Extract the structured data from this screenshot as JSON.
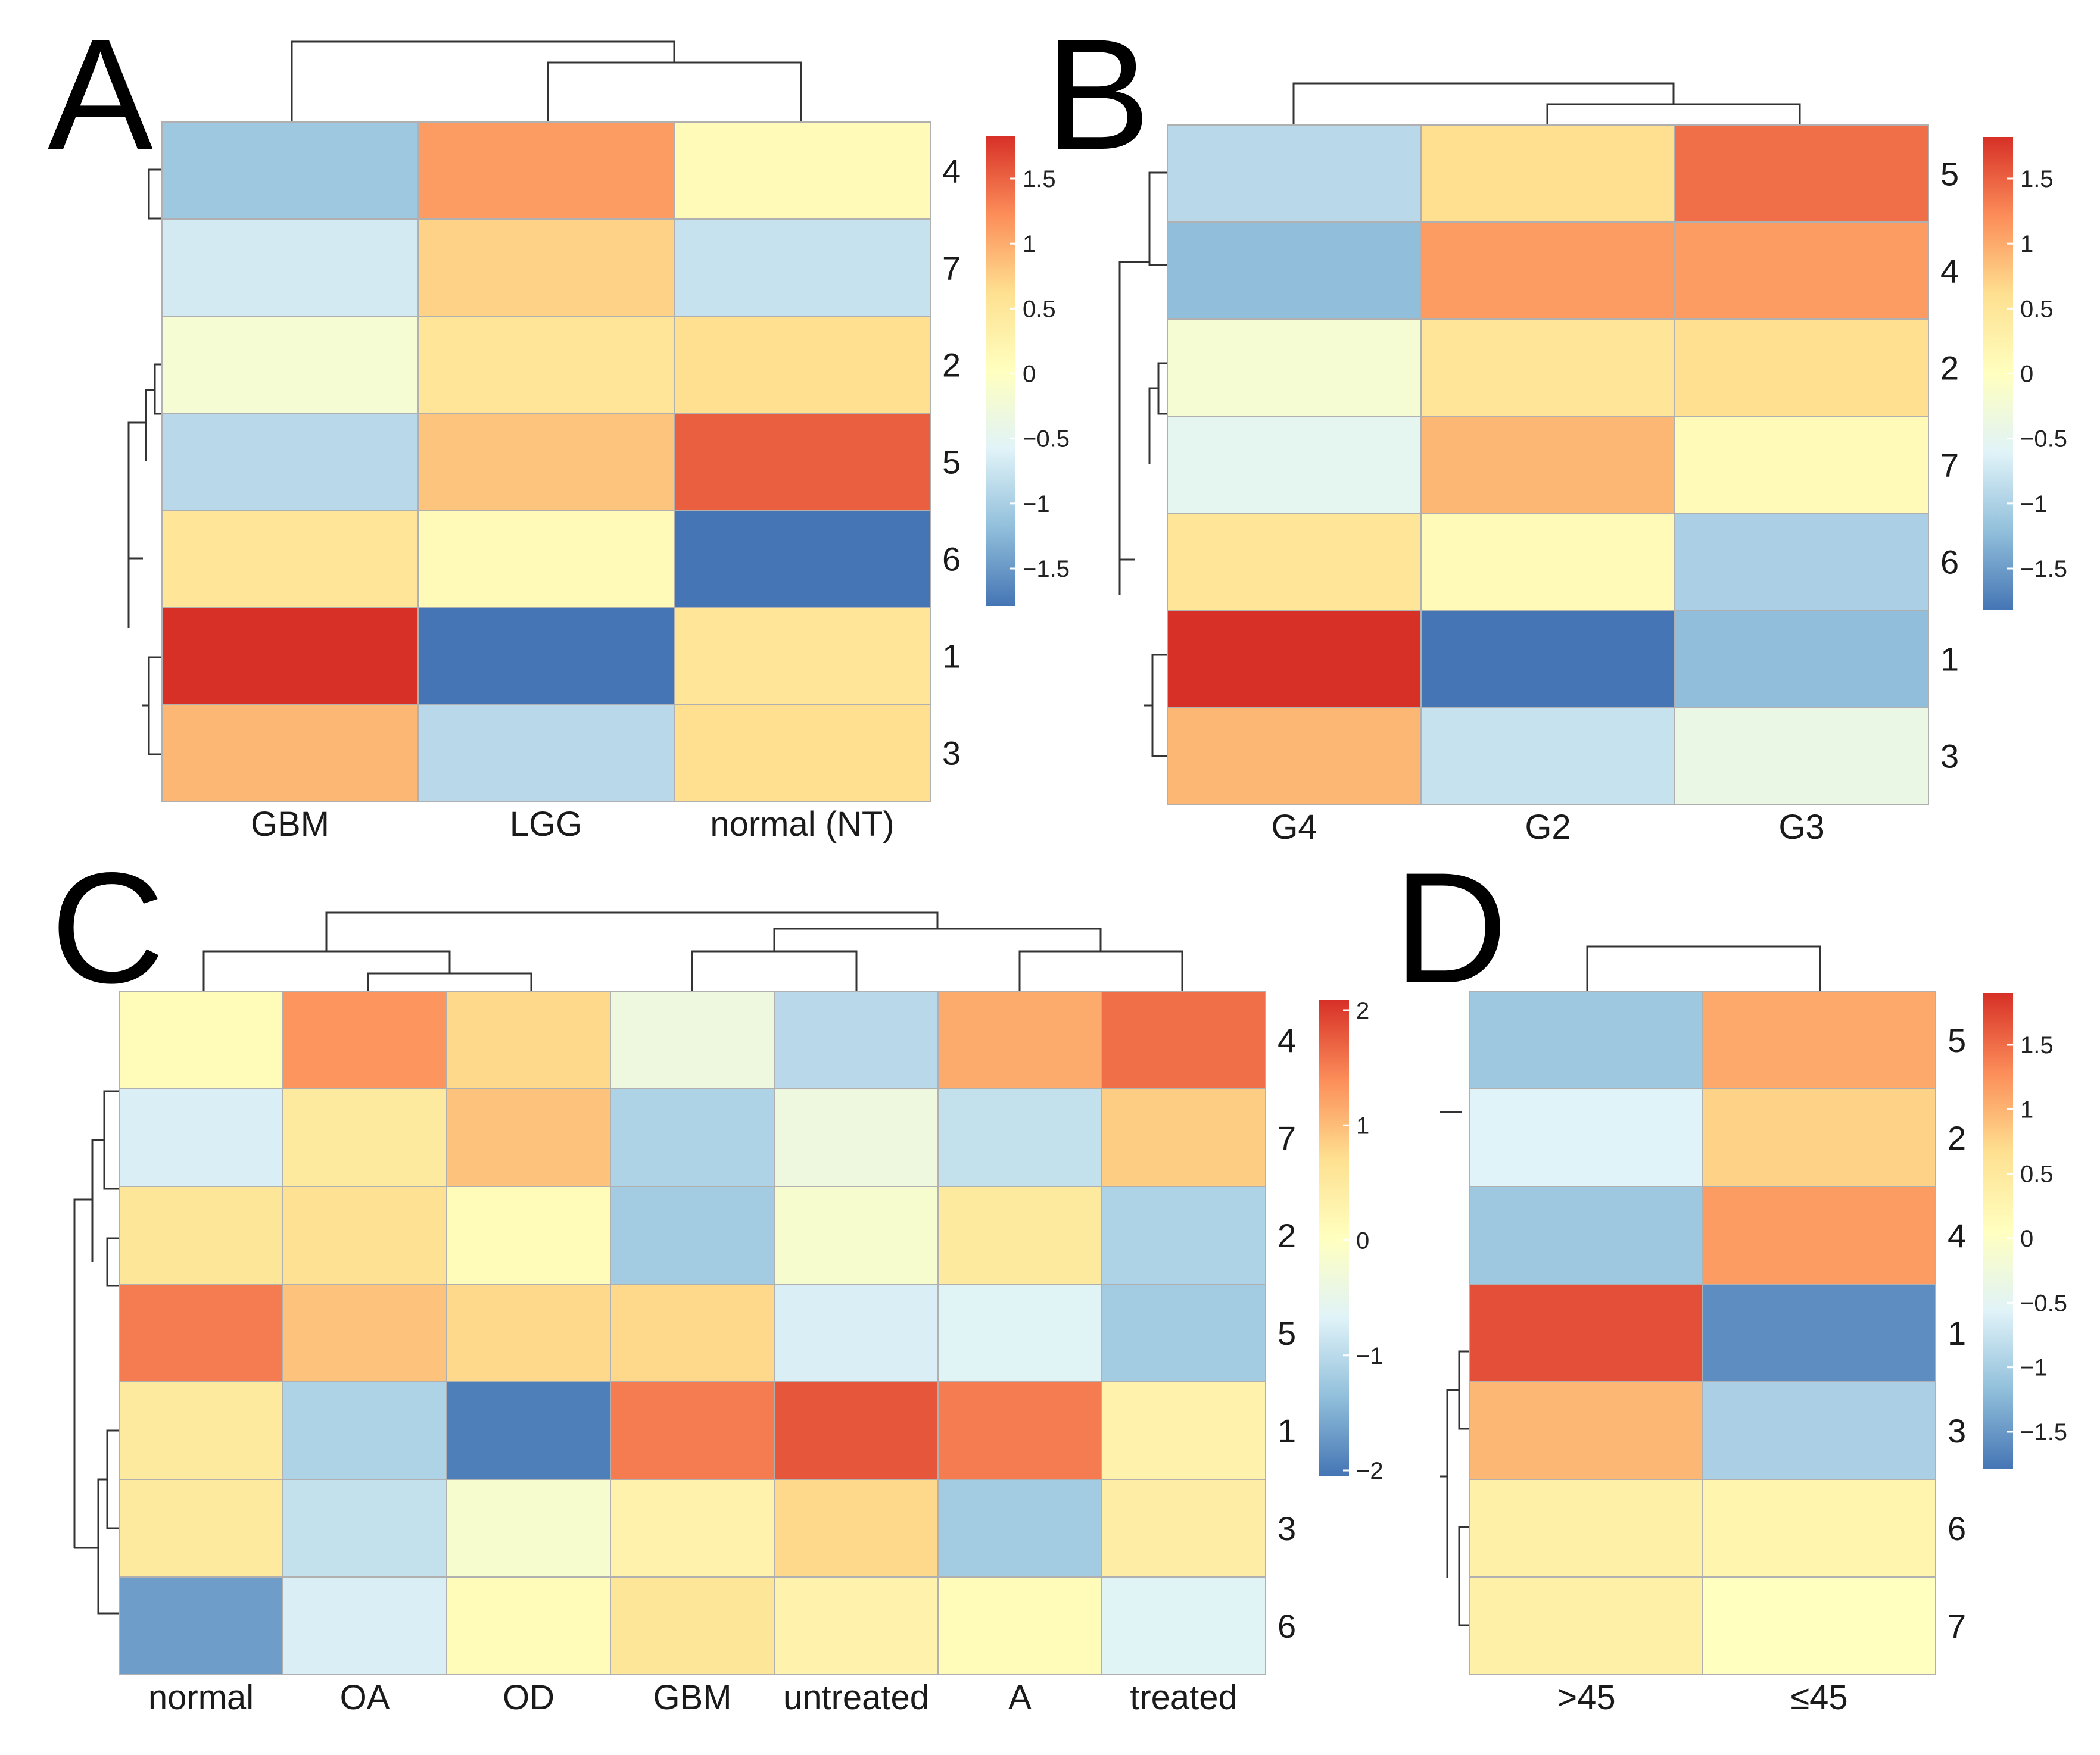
{
  "colormap": {
    "stops": [
      "#4575b4",
      "#91bfdb",
      "#e0f3f8",
      "#ffffbf",
      "#fee090",
      "#fc8d59",
      "#d73027"
    ],
    "legend_ticks_1_5": [
      "1.5",
      "1",
      "0.5",
      "0",
      "−0.5",
      "−1",
      "−1.5"
    ],
    "legend_ticks_2": [
      "2",
      "1",
      "0",
      "−1",
      "−2"
    ]
  },
  "chart_data": [
    {
      "panel": "A",
      "type": "heatmap",
      "letter": "A",
      "columns": [
        "GBM",
        "LGG",
        "normal (NT)"
      ],
      "rows": [
        "4",
        "7",
        "2",
        "5",
        "6",
        "1",
        "3"
      ],
      "values": [
        [
          -1.1,
          1.1,
          0.1
        ],
        [
          -0.7,
          0.7,
          -0.8
        ],
        [
          -0.2,
          0.5,
          0.6
        ],
        [
          -0.9,
          0.8,
          1.5
        ],
        [
          0.5,
          0.1,
          -1.8
        ],
        [
          1.8,
          -1.8,
          0.5
        ],
        [
          0.9,
          -0.9,
          0.6
        ]
      ],
      "range": [
        -1.8,
        1.8
      ],
      "legend_ticks": [
        "1.5",
        "1",
        "0.5",
        "0",
        "−0.5",
        "−1",
        "−1.5"
      ]
    },
    {
      "panel": "B",
      "type": "heatmap",
      "letter": "B",
      "columns": [
        "G4",
        "G2",
        "G3"
      ],
      "rows": [
        "5",
        "4",
        "2",
        "7",
        "6",
        "1",
        "3"
      ],
      "values": [
        [
          -0.9,
          0.6,
          1.4
        ],
        [
          -1.2,
          1.1,
          1.1
        ],
        [
          -0.2,
          0.5,
          0.6
        ],
        [
          -0.5,
          0.9,
          0.1
        ],
        [
          0.5,
          0.1,
          -1.0
        ],
        [
          1.8,
          -1.8,
          -1.2
        ],
        [
          0.9,
          -0.8,
          -0.4
        ]
      ],
      "range": [
        -1.8,
        1.8
      ],
      "legend_ticks": [
        "1.5",
        "1",
        "0.5",
        "0",
        "−0.5",
        "−1",
        "−1.5"
      ]
    },
    {
      "panel": "C",
      "type": "heatmap",
      "letter": "C",
      "columns": [
        "normal",
        "OA",
        "OD",
        "GBM",
        "untreated",
        "A",
        "treated"
      ],
      "rows": [
        "4",
        "7",
        "2",
        "5",
        "1",
        "3",
        "6"
      ],
      "values": [
        [
          0.1,
          1.4,
          0.8,
          -0.4,
          -1.1,
          1.2,
          1.7
        ],
        [
          -0.8,
          0.5,
          1.0,
          -1.2,
          -0.4,
          -1.0,
          0.9
        ],
        [
          0.6,
          0.7,
          0.1,
          -1.3,
          -0.2,
          0.5,
          -1.2
        ],
        [
          1.6,
          1.0,
          0.8,
          0.8,
          -0.8,
          -0.7,
          -1.3
        ],
        [
          0.5,
          -1.2,
          -2.1,
          1.6,
          1.9,
          1.6,
          0.3
        ],
        [
          0.5,
          -1.0,
          -0.2,
          0.3,
          0.8,
          -1.3,
          0.4
        ],
        [
          -1.8,
          -0.8,
          0.1,
          0.6,
          0.3,
          0.1,
          -0.7
        ]
      ],
      "range": [
        -2.2,
        2.2
      ],
      "legend_ticks": [
        "2",
        "1",
        "0",
        "−1",
        "−2"
      ]
    },
    {
      "panel": "D",
      "type": "heatmap",
      "letter": "D",
      "columns": [
        ">45",
        "≤45"
      ],
      "rows": [
        "5",
        "2",
        "4",
        "1",
        "3",
        "6",
        "7"
      ],
      "values": [
        [
          -1.1,
          1.0
        ],
        [
          -0.6,
          0.7
        ],
        [
          -1.1,
          1.1
        ],
        [
          1.6,
          -1.6
        ],
        [
          0.9,
          -1.0
        ],
        [
          0.3,
          0.2
        ],
        [
          0.3,
          0.0
        ]
      ],
      "range": [
        -1.8,
        1.8
      ],
      "legend_ticks": [
        "1.5",
        "1",
        "0.5",
        "0",
        "−0.5",
        "−1",
        "−1.5"
      ]
    }
  ]
}
